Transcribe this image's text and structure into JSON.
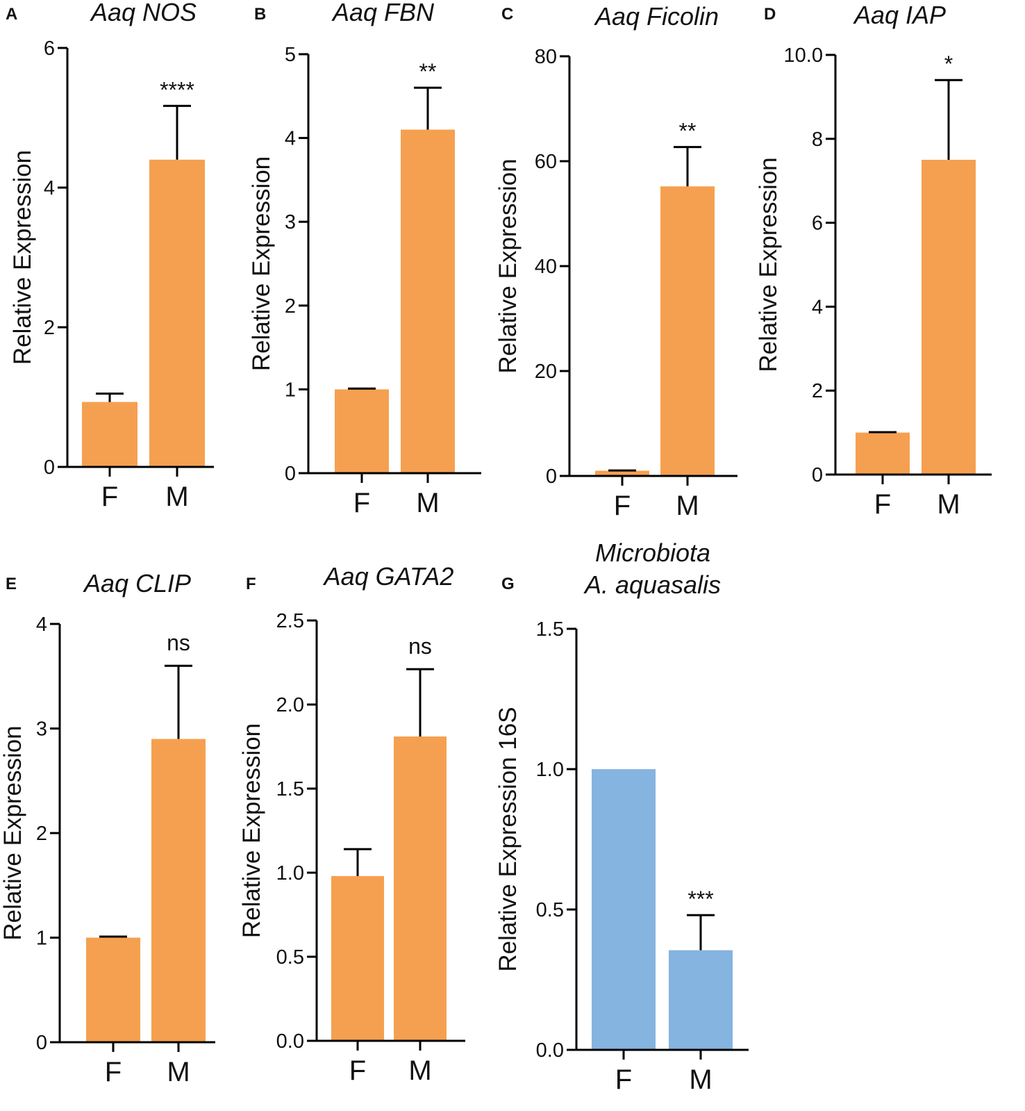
{
  "figure": {
    "colors": {
      "orange": "#F5A050",
      "blue": "#85B4E0",
      "axis": "#000000"
    }
  },
  "chart_data": [
    {
      "panel": "A",
      "type": "bar",
      "title": "Aaq NOS",
      "ylabel": "Relative Expression",
      "categories": [
        "F",
        "M"
      ],
      "values": [
        0.93,
        4.4
      ],
      "errors": [
        0.12,
        0.77
      ],
      "ylim": [
        0,
        6
      ],
      "yticks": [
        "0",
        "2",
        "4",
        "6"
      ],
      "significance": "****",
      "color": "orange"
    },
    {
      "panel": "B",
      "type": "bar",
      "title": "Aaq FBN",
      "ylabel": "Relative Expression",
      "categories": [
        "F",
        "M"
      ],
      "values": [
        1.0,
        4.1
      ],
      "errors": [
        0.01,
        0.5
      ],
      "ylim": [
        0,
        5
      ],
      "yticks": [
        "0",
        "1",
        "2",
        "3",
        "4",
        "5"
      ],
      "significance": "**",
      "color": "orange"
    },
    {
      "panel": "C",
      "type": "bar",
      "title": "Aaq Ficolin",
      "ylabel": "Relative Expression",
      "categories": [
        "F",
        "M"
      ],
      "values": [
        1.0,
        55.2
      ],
      "errors": [
        0.05,
        7.5
      ],
      "ylim": [
        0,
        80
      ],
      "yticks": [
        "0",
        "20",
        "40",
        "60",
        "80"
      ],
      "significance": "**",
      "color": "orange"
    },
    {
      "panel": "D",
      "type": "bar",
      "title": "Aaq IAP",
      "ylabel": "Relative Expression",
      "categories": [
        "F",
        "M"
      ],
      "values": [
        1.0,
        7.5
      ],
      "errors": [
        0.01,
        1.9
      ],
      "ylim": [
        0,
        10
      ],
      "yticks": [
        "0",
        "2",
        "4",
        "6",
        "8",
        "10.0"
      ],
      "significance": "*",
      "color": "orange"
    },
    {
      "panel": "E",
      "type": "bar",
      "title": "Aaq CLIP",
      "ylabel": "Relative Expression",
      "categories": [
        "F",
        "M"
      ],
      "values": [
        1.0,
        2.9
      ],
      "errors": [
        0.01,
        0.7
      ],
      "ylim": [
        0,
        4
      ],
      "yticks": [
        "0",
        "1",
        "2",
        "3",
        "4"
      ],
      "significance": "ns",
      "color": "orange"
    },
    {
      "panel": "F",
      "type": "bar",
      "title": "Aaq GATA2",
      "ylabel": "Relative Expression",
      "categories": [
        "F",
        "M"
      ],
      "values": [
        0.98,
        1.81
      ],
      "errors": [
        0.16,
        0.4
      ],
      "ylim": [
        0,
        2.5
      ],
      "yticks": [
        "0.0",
        "0.5",
        "1.0",
        "1.5",
        "2.0",
        "2.5"
      ],
      "significance": "ns",
      "color": "orange"
    },
    {
      "panel": "G",
      "type": "bar",
      "title": [
        "Microbiota",
        "A. aquasalis"
      ],
      "ylabel": "Relative Expression 16S",
      "categories": [
        "F",
        "M"
      ],
      "values": [
        1.0,
        0.355
      ],
      "errors": [
        0,
        0.125
      ],
      "ylim": [
        0,
        1.5
      ],
      "yticks": [
        "0.0",
        "0.5",
        "1.0",
        "1.5"
      ],
      "significance": "***",
      "color": "blue"
    }
  ]
}
